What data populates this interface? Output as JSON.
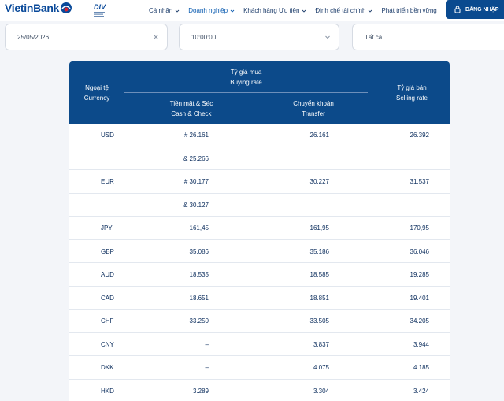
{
  "header": {
    "logo_text": "VietinBank",
    "nav": [
      {
        "label": "Cá nhân",
        "active": false
      },
      {
        "label": "Doanh nghiệp",
        "active": true
      },
      {
        "label": "Khách hàng Ưu tiên",
        "active": false
      },
      {
        "label": "Định chế tài chính",
        "active": false
      },
      {
        "label": "Phát triển bền vững",
        "active": false
      }
    ],
    "login_label": "ĐĂNG NHẬP"
  },
  "filters": {
    "date": "25/05/2026",
    "time": "10:00:00",
    "category": "Tất cả"
  },
  "table": {
    "col_currency": "Ngoại tệ",
    "col_currency_en": "Currency",
    "col_buying": "Tỷ giá mua",
    "col_buying_en": "Buying rate",
    "col_cash": "Tiền mặt & Séc",
    "col_cash_en": "Cash & Check",
    "col_transfer": "Chuyển khoản",
    "col_transfer_en": "Transfer",
    "col_selling": "Tỷ giá bán",
    "col_selling_en": "Selling rate",
    "rows": [
      {
        "code": "USD",
        "flag": "us",
        "cash": "# 26.161",
        "transfer": "26.161",
        "sell": "26.392"
      },
      {
        "code": "",
        "flag": "",
        "cash": "& 25.266",
        "transfer": "",
        "sell": ""
      },
      {
        "code": "EUR",
        "flag": "eu",
        "cash": "# 30.177",
        "transfer": "30.227",
        "sell": "31.537"
      },
      {
        "code": "",
        "flag": "",
        "cash": "& 30.127",
        "transfer": "",
        "sell": ""
      },
      {
        "code": "JPY",
        "flag": "jp",
        "cash": "161,45",
        "transfer": "161,95",
        "sell": "170,95"
      },
      {
        "code": "GBP",
        "flag": "gb",
        "cash": "35.086",
        "transfer": "35.186",
        "sell": "36.046"
      },
      {
        "code": "AUD",
        "flag": "au",
        "cash": "18.535",
        "transfer": "18.585",
        "sell": "19.285"
      },
      {
        "code": "CAD",
        "flag": "ca",
        "cash": "18.651",
        "transfer": "18.851",
        "sell": "19.401"
      },
      {
        "code": "CHF",
        "flag": "ch",
        "cash": "33.250",
        "transfer": "33.505",
        "sell": "34.205"
      },
      {
        "code": "CNY",
        "flag": "cn",
        "cash": "–",
        "transfer": "3.837",
        "sell": "3.944"
      },
      {
        "code": "DKK",
        "flag": "dk",
        "cash": "–",
        "transfer": "4.075",
        "sell": "4.185"
      },
      {
        "code": "HKD",
        "flag": "hk",
        "cash": "3.289",
        "transfer": "3.304",
        "sell": "3.424"
      }
    ]
  }
}
